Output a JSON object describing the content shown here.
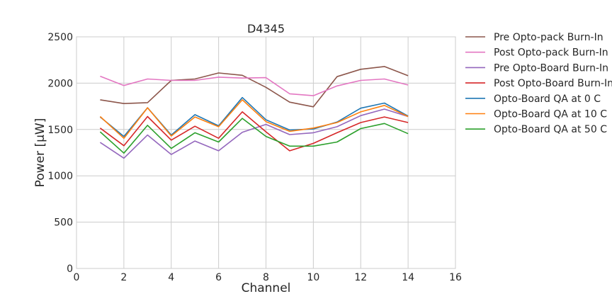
{
  "chart_data": {
    "type": "line",
    "title": "D4345",
    "xlabel": "Channel",
    "ylabel": "Power [μW]",
    "xlim": [
      0,
      16
    ],
    "ylim": [
      0,
      2500
    ],
    "xticks": [
      "0",
      "2",
      "4",
      "6",
      "8",
      "10",
      "12",
      "14",
      "16"
    ],
    "yticks": [
      "0",
      "500",
      "1000",
      "1500",
      "2000",
      "2500"
    ],
    "grid": true,
    "legend": "outside-right",
    "x": [
      1,
      2,
      3,
      4,
      5,
      6,
      7,
      8,
      9,
      10,
      11,
      12,
      13,
      14
    ],
    "series": [
      {
        "name": "Pre Opto-pack Burn-In",
        "color": "#8c564b",
        "values": [
          1820,
          1780,
          1790,
          2030,
          2045,
          2110,
          2085,
          1955,
          1795,
          1745,
          2070,
          2150,
          2180,
          2080
        ]
      },
      {
        "name": "Post Opto-pack Burn-In",
        "color": "#e377c2",
        "values": [
          2075,
          1975,
          2045,
          2030,
          2030,
          2065,
          2055,
          2060,
          1885,
          1865,
          1970,
          2030,
          2045,
          1980
        ]
      },
      {
        "name": "Pre Opto-Board Burn-In",
        "color": "#9467bd",
        "values": [
          1360,
          1190,
          1440,
          1230,
          1375,
          1270,
          1470,
          1555,
          1445,
          1465,
          1530,
          1650,
          1720,
          1640
        ]
      },
      {
        "name": "Post Opto-Board Burn-In",
        "color": "#d62728",
        "values": [
          1515,
          1325,
          1640,
          1385,
          1535,
          1405,
          1690,
          1475,
          1270,
          1350,
          1465,
          1575,
          1635,
          1575
        ]
      },
      {
        "name": "Opto-Board QA at 0 C",
        "color": "#1f77b4",
        "values": [
          1635,
          1425,
          1735,
          1440,
          1660,
          1540,
          1845,
          1605,
          1495,
          1505,
          1580,
          1730,
          1785,
          1645
        ]
      },
      {
        "name": "Opto-Board QA at 10 C",
        "color": "#ff7f0e",
        "values": [
          1640,
          1405,
          1735,
          1430,
          1635,
          1530,
          1820,
          1585,
          1480,
          1515,
          1575,
          1690,
          1760,
          1640
        ]
      },
      {
        "name": "Opto-Board QA at 50 C",
        "color": "#2ca02c",
        "values": [
          1475,
          1245,
          1545,
          1295,
          1465,
          1365,
          1620,
          1425,
          1320,
          1320,
          1365,
          1510,
          1565,
          1455
        ]
      }
    ]
  }
}
